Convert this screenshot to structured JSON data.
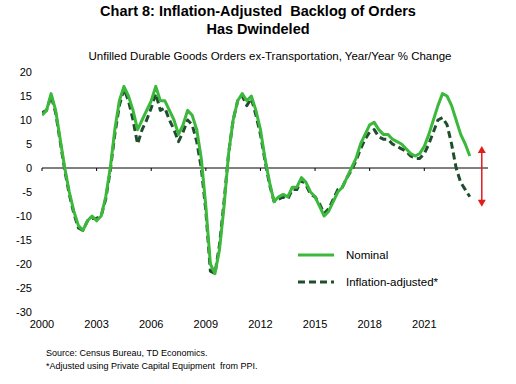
{
  "chart_data": {
    "type": "line",
    "title": [
      "Chart 8: Inflation-Adjusted  Backlog of Orders",
      "Has Dwindeled"
    ],
    "subtitle": "Unfilled Durable Goods Orders ex-Transportation, Year/Year % Change",
    "source": "Source: Census Bureau, TD Economics.",
    "note": "*Adjusted using Private Capital Equipment  from PPI.",
    "x": [
      2000,
      2000.25,
      2000.5,
      2000.75,
      2001,
      2001.25,
      2001.5,
      2001.75,
      2002,
      2002.25,
      2002.5,
      2002.75,
      2003,
      2003.25,
      2003.5,
      2003.75,
      2004,
      2004.25,
      2004.5,
      2004.75,
      2005,
      2005.25,
      2005.5,
      2005.75,
      2006,
      2006.25,
      2006.5,
      2006.75,
      2007,
      2007.25,
      2007.5,
      2007.75,
      2008,
      2008.25,
      2008.5,
      2008.75,
      2009,
      2009.25,
      2009.5,
      2009.75,
      2010,
      2010.25,
      2010.5,
      2010.75,
      2011,
      2011.25,
      2011.5,
      2011.75,
      2012,
      2012.25,
      2012.5,
      2012.75,
      2013,
      2013.25,
      2013.5,
      2013.75,
      2014,
      2014.25,
      2014.5,
      2014.75,
      2015,
      2015.25,
      2015.5,
      2015.75,
      2016,
      2016.25,
      2016.5,
      2016.75,
      2017,
      2017.25,
      2017.5,
      2017.75,
      2018,
      2018.25,
      2018.5,
      2018.75,
      2019,
      2019.25,
      2019.5,
      2019.75,
      2020,
      2020.25,
      2020.5,
      2020.75,
      2021,
      2021.25,
      2021.5,
      2021.75,
      2022,
      2022.25,
      2022.5,
      2022.75,
      2023,
      2023.25,
      2023.5
    ],
    "series": [
      {
        "name": "Nominal",
        "color": "#3cb93c",
        "line_style": "solid",
        "values": [
          11,
          12,
          15.5,
          12,
          6,
          0,
          -5,
          -9,
          -12,
          -13,
          -11,
          -10,
          -11,
          -10,
          -6,
          0,
          8,
          14,
          17,
          15,
          12,
          8,
          10,
          12,
          14,
          17,
          14,
          14,
          12,
          10,
          7,
          9,
          12,
          11,
          8,
          2,
          -8,
          -20,
          -22,
          -17,
          -8,
          3,
          10,
          14,
          15.5,
          14,
          15,
          12,
          8,
          2,
          -3,
          -7,
          -6,
          -5.5,
          -6,
          -4,
          -4,
          -2,
          -3,
          -5,
          -6,
          -8,
          -10,
          -9,
          -7,
          -5,
          -4,
          -2,
          0,
          2,
          5,
          7,
          9,
          9.5,
          8,
          7,
          7,
          6,
          5.5,
          5,
          4,
          3,
          2.5,
          3,
          4.5,
          7,
          10,
          13,
          15.5,
          15,
          13,
          10,
          7,
          5,
          2.5
        ]
      },
      {
        "name": "Inflation-adjusted*",
        "color": "#1f4e2c",
        "line_style": "dashed",
        "values": [
          11.5,
          12,
          15,
          11.5,
          5.5,
          -0.5,
          -5.5,
          -9.5,
          -12.5,
          -13,
          -11,
          -10.5,
          -10.5,
          -10,
          -6.5,
          -0.5,
          7,
          13,
          16.5,
          14,
          10,
          5,
          8,
          10,
          12.5,
          15.5,
          12,
          12.5,
          10,
          8,
          5.5,
          7.5,
          10,
          9,
          5.5,
          0,
          -9,
          -21.5,
          -22,
          -16,
          -7,
          3,
          10,
          14,
          15,
          13,
          14.5,
          11,
          7,
          1.5,
          -3.5,
          -7,
          -6.5,
          -6,
          -6.5,
          -4.5,
          -4.5,
          -2.5,
          -3.5,
          -5.5,
          -6,
          -7.5,
          -9.5,
          -8.5,
          -6.5,
          -4.5,
          -4,
          -2,
          -0.5,
          1.5,
          4,
          6,
          7.5,
          8,
          6.5,
          6,
          6,
          5,
          4.5,
          4,
          3.5,
          2.5,
          2,
          2,
          3,
          5,
          7.5,
          10,
          10.5,
          9,
          5,
          0,
          -3,
          -4.5,
          -6
        ]
      }
    ],
    "xlim": [
      2000,
      2024.5
    ],
    "xticks": [
      2000,
      2003,
      2006,
      2009,
      2012,
      2015,
      2018,
      2021
    ],
    "ylim": [
      -30,
      20
    ],
    "yticks": [
      -30,
      -25,
      -20,
      -15,
      -10,
      -5,
      0,
      5,
      10,
      15,
      20
    ],
    "grid": false,
    "legend": "bottom-right"
  }
}
